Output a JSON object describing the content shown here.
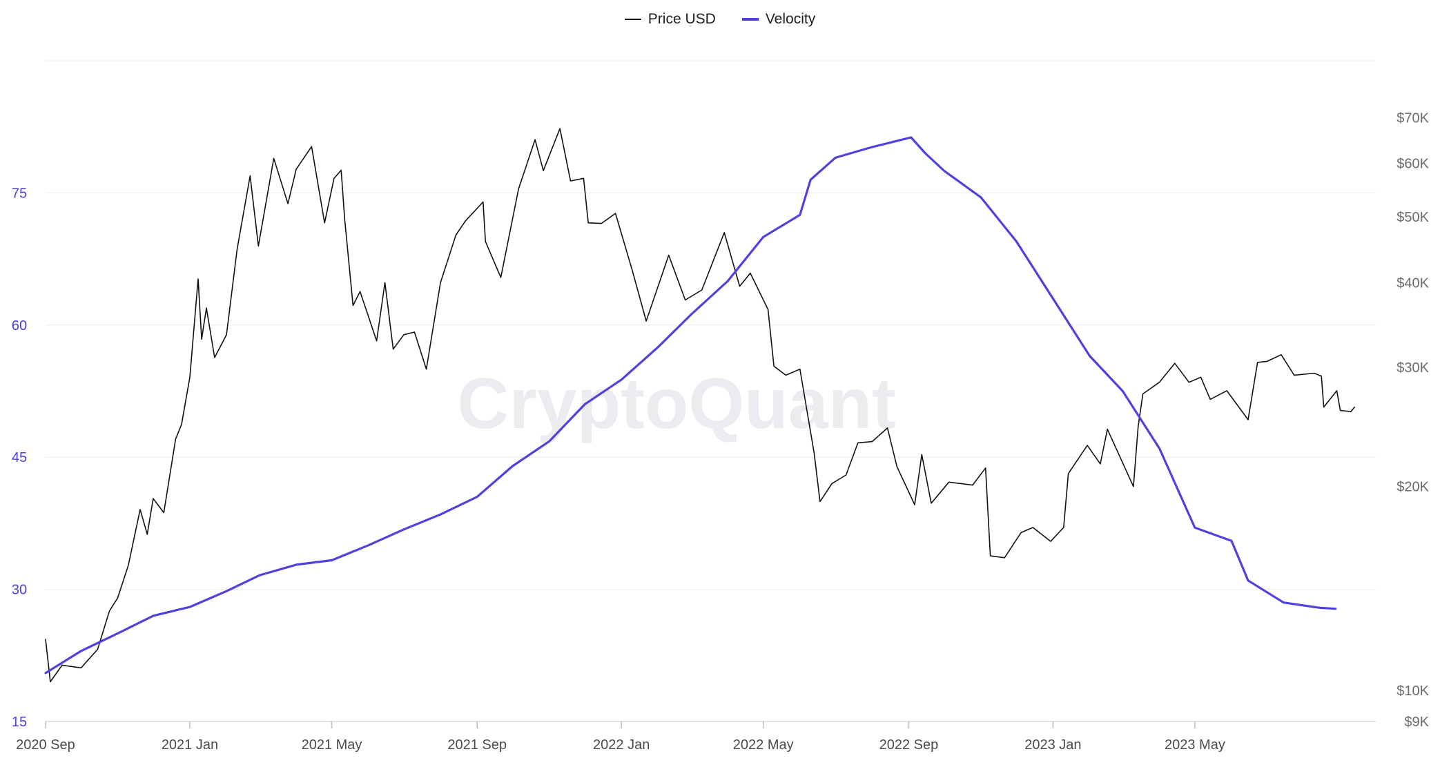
{
  "legend": [
    {
      "label": "Price USD",
      "color": "#111111"
    },
    {
      "label": "Velocity",
      "color": "#5040e0"
    }
  ],
  "watermark": "CryptoQuant",
  "colors": {
    "price": "#111111",
    "velocity": "#5040e0",
    "grid": "#ececec",
    "left_axis": "#4c3ee0",
    "right_axis": "#6b6b6b"
  },
  "chart_data": {
    "type": "line",
    "x_range": [
      "2020-09-01",
      "2023-10-01"
    ],
    "x_ticks": [
      {
        "date": "2020-09-01",
        "label": "2020 Sep"
      },
      {
        "date": "2021-01-01",
        "label": "2021 Jan"
      },
      {
        "date": "2021-05-01",
        "label": "2021 May"
      },
      {
        "date": "2021-09-01",
        "label": "2021 Sep"
      },
      {
        "date": "2022-01-01",
        "label": "2022 Jan"
      },
      {
        "date": "2022-05-01",
        "label": "2022 May"
      },
      {
        "date": "2022-09-01",
        "label": "2022 Sep"
      },
      {
        "date": "2023-01-01",
        "label": "2023 Jan"
      },
      {
        "date": "2023-05-01",
        "label": "2023 May"
      }
    ],
    "y_left": {
      "ticks": [
        15,
        30,
        45,
        60,
        75
      ],
      "range": [
        15,
        90
      ],
      "labels": [
        "15",
        "30",
        "45",
        "60",
        "75"
      ]
    },
    "y_right": {
      "scale": "log",
      "range": [
        9000,
        85000
      ],
      "ticks": [
        9000,
        10000,
        20000,
        30000,
        40000,
        50000,
        60000,
        70000
      ],
      "labels": [
        "$9K",
        "$10K",
        "$20K",
        "$30K",
        "$40K",
        "$50K",
        "$60K",
        "$70K"
      ]
    },
    "grid": true,
    "legend_position": "top-center",
    "series": [
      {
        "name": "Price USD",
        "axis": "right",
        "color": "#111111",
        "points": [
          [
            "2020-09-01",
            11900
          ],
          [
            "2020-09-05",
            10300
          ],
          [
            "2020-09-15",
            10900
          ],
          [
            "2020-10-01",
            10800
          ],
          [
            "2020-10-15",
            11500
          ],
          [
            "2020-10-25",
            13100
          ],
          [
            "2020-11-01",
            13700
          ],
          [
            "2020-11-10",
            15300
          ],
          [
            "2020-11-20",
            18500
          ],
          [
            "2020-11-26",
            17000
          ],
          [
            "2020-12-01",
            19200
          ],
          [
            "2020-12-10",
            18300
          ],
          [
            "2020-12-20",
            23500
          ],
          [
            "2020-12-25",
            24700
          ],
          [
            "2021-01-01",
            29000
          ],
          [
            "2021-01-08",
            40500
          ],
          [
            "2021-01-11",
            33000
          ],
          [
            "2021-01-15",
            36700
          ],
          [
            "2021-01-22",
            31000
          ],
          [
            "2021-02-01",
            33500
          ],
          [
            "2021-02-10",
            44800
          ],
          [
            "2021-02-21",
            57500
          ],
          [
            "2021-02-28",
            45300
          ],
          [
            "2021-03-13",
            61000
          ],
          [
            "2021-03-25",
            52300
          ],
          [
            "2021-04-01",
            58800
          ],
          [
            "2021-04-14",
            63500
          ],
          [
            "2021-04-25",
            49000
          ],
          [
            "2021-05-03",
            57000
          ],
          [
            "2021-05-09",
            58600
          ],
          [
            "2021-05-12",
            49500
          ],
          [
            "2021-05-19",
            37000
          ],
          [
            "2021-05-25",
            38800
          ],
          [
            "2021-06-08",
            32800
          ],
          [
            "2021-06-15",
            40000
          ],
          [
            "2021-06-22",
            31900
          ],
          [
            "2021-07-01",
            33500
          ],
          [
            "2021-07-10",
            33800
          ],
          [
            "2021-07-20",
            29800
          ],
          [
            "2021-08-01",
            40000
          ],
          [
            "2021-08-14",
            47000
          ],
          [
            "2021-08-22",
            49300
          ],
          [
            "2021-09-06",
            52600
          ],
          [
            "2021-09-08",
            46000
          ],
          [
            "2021-09-21",
            40700
          ],
          [
            "2021-10-06",
            55000
          ],
          [
            "2021-10-20",
            65000
          ],
          [
            "2021-10-27",
            58500
          ],
          [
            "2021-11-10",
            67500
          ],
          [
            "2021-11-19",
            56500
          ],
          [
            "2021-11-30",
            57000
          ],
          [
            "2021-12-04",
            49000
          ],
          [
            "2021-12-15",
            48900
          ],
          [
            "2021-12-27",
            50600
          ],
          [
            "2022-01-10",
            41800
          ],
          [
            "2022-01-22",
            35100
          ],
          [
            "2022-02-10",
            43900
          ],
          [
            "2022-02-24",
            37700
          ],
          [
            "2022-03-10",
            39000
          ],
          [
            "2022-03-29",
            47400
          ],
          [
            "2022-04-11",
            39500
          ],
          [
            "2022-04-20",
            41300
          ],
          [
            "2022-05-05",
            36500
          ],
          [
            "2022-05-10",
            30100
          ],
          [
            "2022-05-20",
            29200
          ],
          [
            "2022-06-01",
            29800
          ],
          [
            "2022-06-13",
            22400
          ],
          [
            "2022-06-18",
            19000
          ],
          [
            "2022-06-28",
            20200
          ],
          [
            "2022-07-10",
            20800
          ],
          [
            "2022-07-20",
            23200
          ],
          [
            "2022-08-01",
            23300
          ],
          [
            "2022-08-14",
            24400
          ],
          [
            "2022-08-22",
            21400
          ],
          [
            "2022-09-06",
            18800
          ],
          [
            "2022-09-12",
            22300
          ],
          [
            "2022-09-20",
            18900
          ],
          [
            "2022-10-05",
            20300
          ],
          [
            "2022-10-25",
            20100
          ],
          [
            "2022-11-05",
            21300
          ],
          [
            "2022-11-09",
            15800
          ],
          [
            "2022-11-21",
            15700
          ],
          [
            "2022-12-05",
            17100
          ],
          [
            "2022-12-15",
            17400
          ],
          [
            "2022-12-30",
            16600
          ],
          [
            "2023-01-10",
            17400
          ],
          [
            "2023-01-14",
            20900
          ],
          [
            "2023-01-30",
            23000
          ],
          [
            "2023-02-10",
            21600
          ],
          [
            "2023-02-16",
            24300
          ],
          [
            "2023-03-10",
            20000
          ],
          [
            "2023-03-14",
            24500
          ],
          [
            "2023-03-18",
            27400
          ],
          [
            "2023-04-01",
            28500
          ],
          [
            "2023-04-14",
            30400
          ],
          [
            "2023-04-26",
            28500
          ],
          [
            "2023-05-06",
            29000
          ],
          [
            "2023-05-14",
            26900
          ],
          [
            "2023-05-28",
            27700
          ],
          [
            "2023-06-15",
            25100
          ],
          [
            "2023-06-23",
            30500
          ],
          [
            "2023-07-01",
            30600
          ],
          [
            "2023-07-13",
            31300
          ],
          [
            "2023-07-24",
            29200
          ],
          [
            "2023-08-10",
            29400
          ],
          [
            "2023-08-16",
            29100
          ],
          [
            "2023-08-18",
            26200
          ],
          [
            "2023-08-29",
            27700
          ],
          [
            "2023-09-01",
            25900
          ],
          [
            "2023-09-10",
            25800
          ],
          [
            "2023-09-13",
            26200
          ]
        ]
      },
      {
        "name": "Velocity",
        "axis": "left",
        "color": "#5040e0",
        "points": [
          [
            "2020-09-01",
            20.5
          ],
          [
            "2020-10-01",
            23.0
          ],
          [
            "2020-11-01",
            25.0
          ],
          [
            "2020-12-01",
            27.0
          ],
          [
            "2021-01-01",
            28.0
          ],
          [
            "2021-02-01",
            29.8
          ],
          [
            "2021-03-01",
            31.6
          ],
          [
            "2021-04-01",
            32.8
          ],
          [
            "2021-05-01",
            33.3
          ],
          [
            "2021-06-01",
            35.0
          ],
          [
            "2021-07-01",
            36.8
          ],
          [
            "2021-08-01",
            38.5
          ],
          [
            "2021-09-01",
            40.5
          ],
          [
            "2021-10-01",
            44.0
          ],
          [
            "2021-11-01",
            46.8
          ],
          [
            "2021-12-01",
            51.0
          ],
          [
            "2022-01-01",
            53.8
          ],
          [
            "2022-02-01",
            57.5
          ],
          [
            "2022-03-01",
            61.2
          ],
          [
            "2022-04-01",
            65.0
          ],
          [
            "2022-05-01",
            70.0
          ],
          [
            "2022-06-01",
            72.5
          ],
          [
            "2022-06-10",
            76.5
          ],
          [
            "2022-07-01",
            79.0
          ],
          [
            "2022-08-01",
            80.2
          ],
          [
            "2022-08-25",
            81.0
          ],
          [
            "2022-09-03",
            81.3
          ],
          [
            "2022-09-15",
            79.5
          ],
          [
            "2022-10-01",
            77.5
          ],
          [
            "2022-11-01",
            74.5
          ],
          [
            "2022-12-01",
            69.5
          ],
          [
            "2023-01-01",
            63.0
          ],
          [
            "2023-02-01",
            56.5
          ],
          [
            "2023-03-01",
            52.5
          ],
          [
            "2023-04-01",
            46.0
          ],
          [
            "2023-05-01",
            37.0
          ],
          [
            "2023-06-01",
            35.5
          ],
          [
            "2023-06-15",
            31.0
          ],
          [
            "2023-07-15",
            28.5
          ],
          [
            "2023-08-15",
            27.9
          ],
          [
            "2023-08-28",
            27.8
          ]
        ]
      }
    ]
  }
}
